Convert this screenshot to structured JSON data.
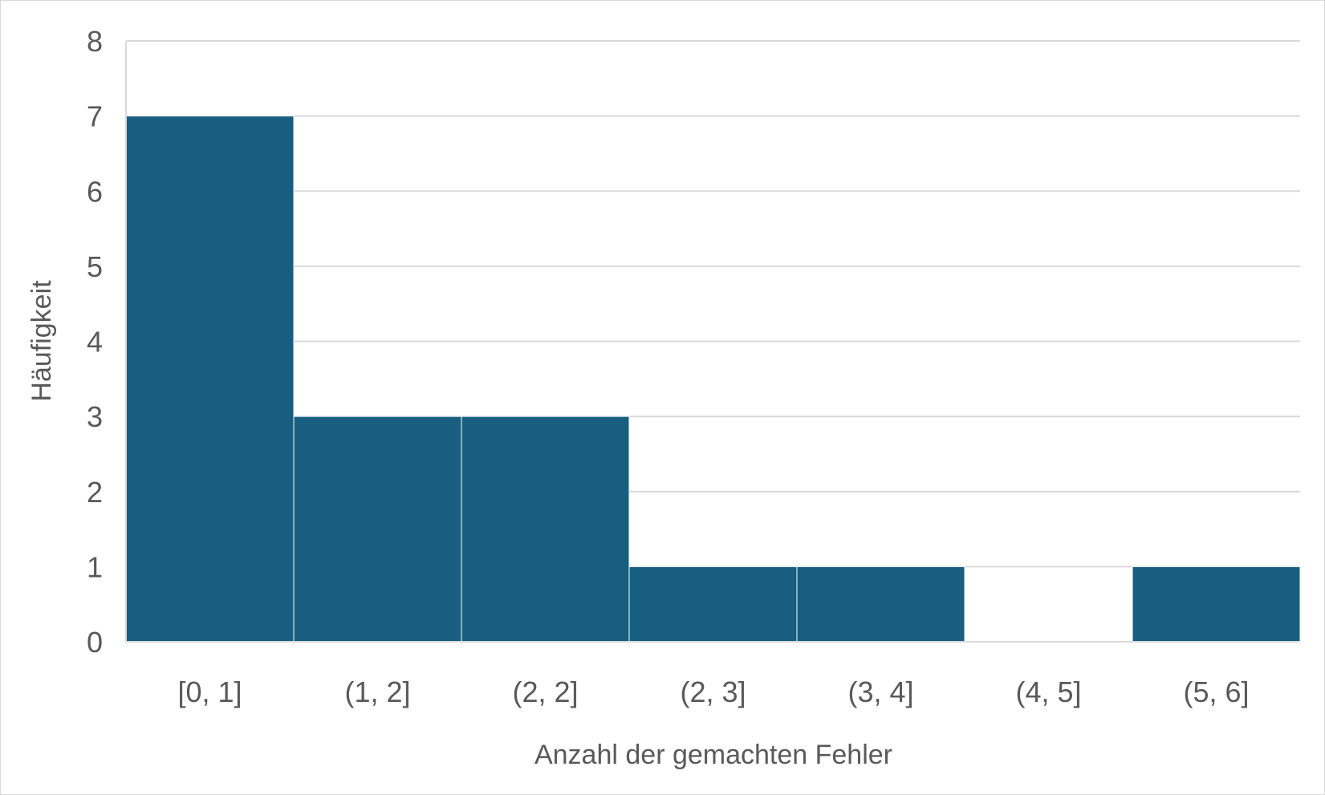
{
  "chart_data": {
    "type": "bar",
    "title": "",
    "xlabel": "Anzahl der gemachten Fehler",
    "ylabel": "Häufigkeit",
    "categories": [
      "[0, 1]",
      "(1, 2]",
      "(2, 2]",
      "(2, 3]",
      "(3, 4]",
      "(4, 5]",
      "(5, 6]"
    ],
    "values": [
      7,
      3,
      3,
      1,
      1,
      0,
      1
    ],
    "ylim": [
      0,
      8
    ],
    "yticks": [
      "0",
      "1",
      "2",
      "3",
      "4",
      "5",
      "6",
      "7",
      "8"
    ],
    "grid": true,
    "legend": "none",
    "colors": {
      "bar": "#175E81",
      "bar_border": "#ffffff",
      "grid": "#d9d9d9",
      "text": "#595959"
    }
  }
}
